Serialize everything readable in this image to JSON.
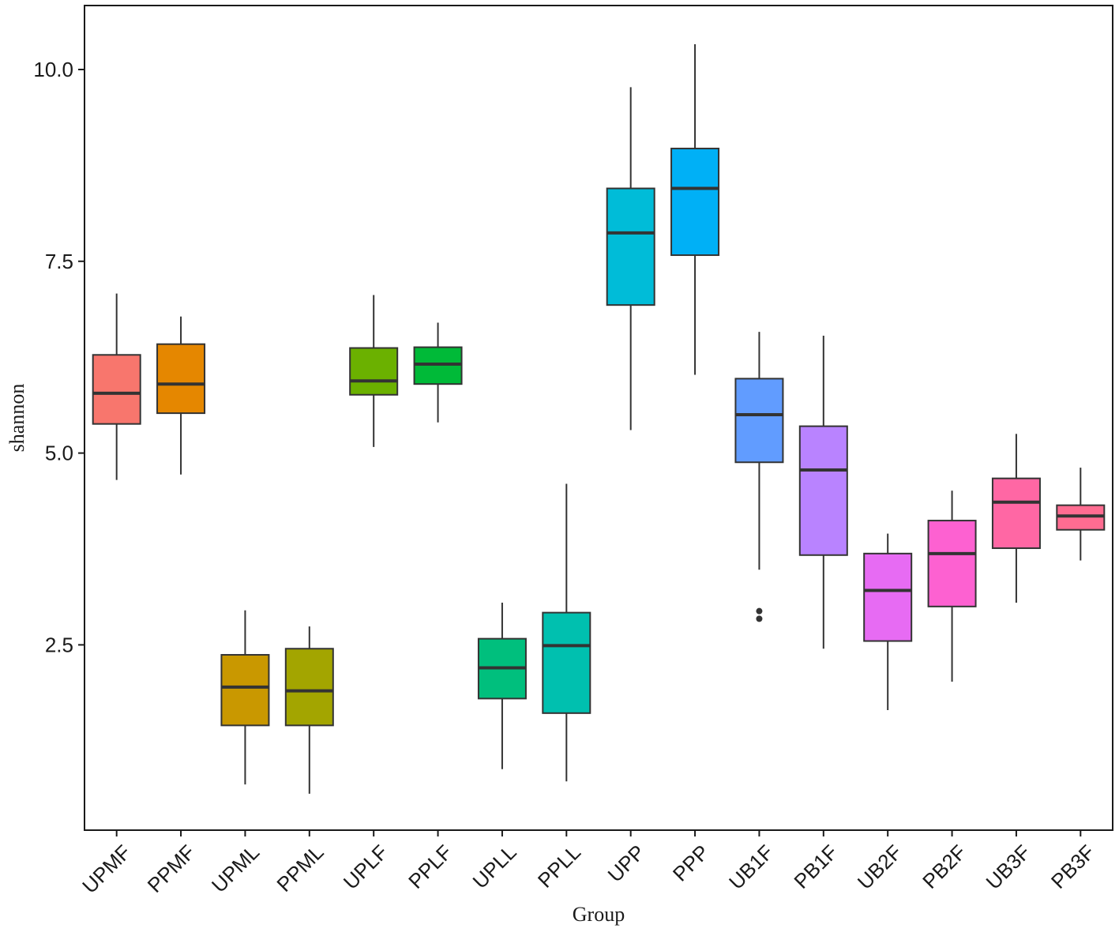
{
  "chart_data": {
    "type": "box",
    "xlabel": "Group",
    "ylabel": "shannon",
    "ylim": [
      0.35,
      10.85
    ],
    "yticks": [
      2.5,
      5.0,
      7.5,
      10.0
    ],
    "ytick_labels": [
      "2.5",
      "5.0",
      "7.5",
      "10.0"
    ],
    "grid": false,
    "legend": "none",
    "categories": [
      "UPMF",
      "PPMF",
      "UPML",
      "PPML",
      "UPLF",
      "PPLF",
      "UPLL",
      "PPLL",
      "UPP",
      "PPP",
      "UB1F",
      "PB1F",
      "UB2F",
      "PB2F",
      "UB3F",
      "PB3F"
    ],
    "boxes": [
      {
        "group": "UPMF",
        "min": 4.65,
        "q1": 5.38,
        "median": 5.78,
        "q3": 6.28,
        "max": 7.08,
        "outliers": [],
        "color": "#F8766D"
      },
      {
        "group": "PPMF",
        "min": 4.72,
        "q1": 5.52,
        "median": 5.9,
        "q3": 6.42,
        "max": 6.78,
        "outliers": [],
        "color": "#E58700"
      },
      {
        "group": "UPML",
        "min": 0.68,
        "q1": 1.45,
        "median": 1.95,
        "q3": 2.37,
        "max": 2.95,
        "outliers": [],
        "color": "#C99800"
      },
      {
        "group": "PPML",
        "min": 0.56,
        "q1": 1.45,
        "median": 1.9,
        "q3": 2.45,
        "max": 2.74,
        "outliers": [],
        "color": "#A3A500"
      },
      {
        "group": "UPLF",
        "min": 5.08,
        "q1": 5.76,
        "median": 5.94,
        "q3": 6.37,
        "max": 7.06,
        "outliers": [],
        "color": "#6BB100"
      },
      {
        "group": "PPLF",
        "min": 5.4,
        "q1": 5.9,
        "median": 6.16,
        "q3": 6.38,
        "max": 6.7,
        "outliers": [],
        "color": "#00BA38"
      },
      {
        "group": "UPLL",
        "min": 0.88,
        "q1": 1.8,
        "median": 2.2,
        "q3": 2.58,
        "max": 3.05,
        "outliers": [],
        "color": "#00BF7D"
      },
      {
        "group": "PPLL",
        "min": 0.72,
        "q1": 1.61,
        "median": 2.49,
        "q3": 2.92,
        "max": 4.6,
        "outliers": [],
        "color": "#00C0AF"
      },
      {
        "group": "UPP",
        "min": 5.3,
        "q1": 6.93,
        "median": 7.87,
        "q3": 8.45,
        "max": 9.77,
        "outliers": [],
        "color": "#00BCD8"
      },
      {
        "group": "PPP",
        "min": 6.02,
        "q1": 7.58,
        "median": 8.45,
        "q3": 8.97,
        "max": 10.33,
        "outliers": [],
        "color": "#00B0F6"
      },
      {
        "group": "UB1F",
        "min": 3.48,
        "q1": 4.88,
        "median": 5.5,
        "q3": 5.97,
        "max": 6.58,
        "outliers": [
          2.94,
          2.84
        ],
        "color": "#619CFF"
      },
      {
        "group": "PB1F",
        "min": 2.45,
        "q1": 3.67,
        "median": 4.78,
        "q3": 5.35,
        "max": 6.53,
        "outliers": [],
        "color": "#B983FF"
      },
      {
        "group": "UB2F",
        "min": 1.65,
        "q1": 2.55,
        "median": 3.21,
        "q3": 3.69,
        "max": 3.95,
        "outliers": [],
        "color": "#E76BF3"
      },
      {
        "group": "PB2F",
        "min": 2.02,
        "q1": 3.0,
        "median": 3.69,
        "q3": 4.12,
        "max": 4.51,
        "outliers": [],
        "color": "#FD61D1"
      },
      {
        "group": "UB3F",
        "min": 3.05,
        "q1": 3.76,
        "median": 4.36,
        "q3": 4.67,
        "max": 5.25,
        "outliers": [],
        "color": "#FF67A4"
      },
      {
        "group": "PB3F",
        "min": 3.6,
        "q1": 4.0,
        "median": 4.18,
        "q3": 4.32,
        "max": 4.81,
        "outliers": [],
        "color": "#FF6C91"
      }
    ]
  },
  "colors": {
    "panel_border": "#1a1a1a",
    "whisker": "#333333",
    "median_line": "#333333",
    "outlier": "#333333"
  }
}
